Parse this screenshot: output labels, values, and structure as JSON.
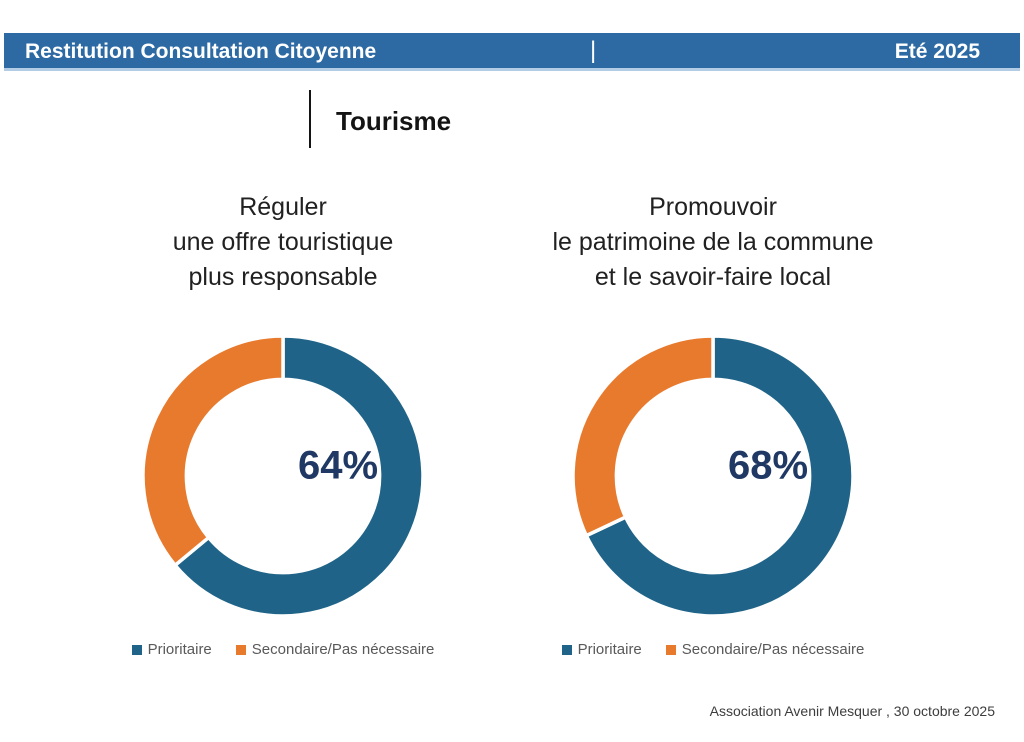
{
  "header": {
    "left_title": "Restitution Consultation Citoyenne",
    "divider": "|",
    "right_title": "Eté 2025"
  },
  "slide": {
    "section_title": "Tourisme",
    "footer": "Association Avenir Mesquer , 30 octobre 2025"
  },
  "colors": {
    "header_bar": "#2d6aa4",
    "header_underline": "#b3cce6",
    "prioritaire_blue": "#1f6488",
    "secondaire_orange": "#e87a2e",
    "value_navy": "#1f3864",
    "legend_text_gray": "#595959"
  },
  "chart_data": [
    {
      "type": "pie",
      "variant": "donut",
      "title_lines": [
        "Réguler",
        "une offre touristique",
        "plus responsable"
      ],
      "labels": [
        "Prioritaire",
        "Secondaire/Pas nécessaire"
      ],
      "values": [
        64,
        36
      ],
      "colors": [
        "#1f6488",
        "#e87a2e"
      ],
      "center_label": "64%",
      "start_angle_deg": 0,
      "direction": "clockwise",
      "legend_position": "bottom"
    },
    {
      "type": "pie",
      "variant": "donut",
      "title_lines": [
        "Promouvoir",
        "le patrimoine de la commune",
        "et le savoir-faire local"
      ],
      "labels": [
        "Prioritaire",
        "Secondaire/Pas nécessaire"
      ],
      "values": [
        68,
        32
      ],
      "colors": [
        "#1f6488",
        "#e87a2e"
      ],
      "center_label": "68%",
      "start_angle_deg": 0,
      "direction": "clockwise",
      "legend_position": "bottom"
    }
  ]
}
